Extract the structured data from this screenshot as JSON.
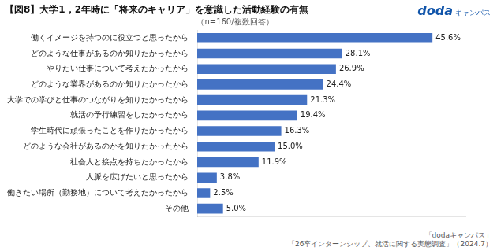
{
  "chart_data": {
    "type": "bar",
    "orientation": "horizontal",
    "title": "【図8】大学1，2年時に「将来のキャリア」を意識した活動経験の有無",
    "subtitle": "（n=160/複数回答）",
    "annotations": [
      "doda",
      "キャンパス",
      "「dodaキャンパス」",
      "「26卒インターンシップ、就活に関する実態調査」（2024.7）"
    ],
    "categories": [
      "働くイメージを持つのに役立つと思ったから",
      "どのような仕事があるのか知りたかったから",
      "やりたい仕事について考えたかったから",
      "どのような業界があるのか知りたかったから",
      "大学での学びと仕事のつながりを知りたかったから",
      "就活の予行練習をしたかったから",
      "学生時代に頑張ったことを作りたかったから",
      "どのような会社があるのかを知りたかったから",
      "社会人と接点を持ちたかったから",
      "人脈を広げたいと思ったから",
      "働きたい場所（勤務地）について考えたかったから",
      "その他"
    ],
    "values": [
      45.6,
      28.1,
      26.9,
      24.4,
      21.3,
      19.4,
      16.3,
      15.0,
      11.9,
      3.8,
      2.5,
      5.0
    ],
    "value_labels": [
      "45.6%",
      "28.1%",
      "26.9%",
      "24.4%",
      "21.3%",
      "19.4%",
      "16.3%",
      "15.0%",
      "11.9%",
      "3.8%",
      "2.5%",
      "5.0%"
    ],
    "data_labels": true,
    "color": "#4472C4",
    "xlim": [
      0,
      52
    ],
    "grid": false,
    "tick_labels": "y"
  }
}
